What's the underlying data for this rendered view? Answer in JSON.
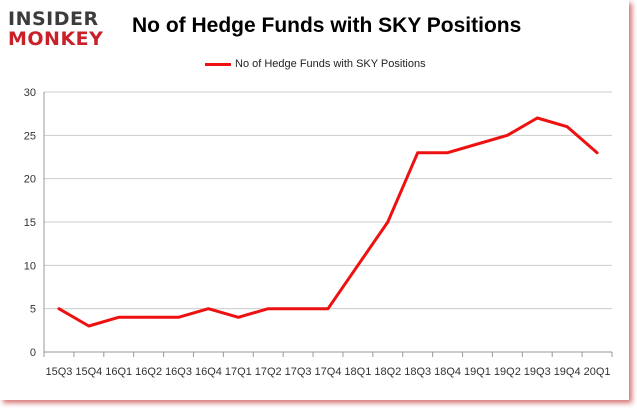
{
  "logo": {
    "line1": "INSIDER",
    "line2": "MONKEY"
  },
  "colors": {
    "series": "#ee1111",
    "grid": "#cccccc",
    "brand_red": "#c9202a"
  },
  "chart_data": {
    "type": "line",
    "title": "No of Hedge Funds with SKY Positions",
    "legend_position": "top-center",
    "grid": true,
    "ylim": [
      0,
      30
    ],
    "yticks": [
      0,
      5,
      10,
      15,
      20,
      25,
      30
    ],
    "categories": [
      "15Q3",
      "15Q4",
      "16Q1",
      "16Q2",
      "16Q3",
      "16Q4",
      "17Q1",
      "17Q2",
      "17Q3",
      "17Q4",
      "18Q1",
      "18Q2",
      "18Q3",
      "18Q4",
      "19Q1",
      "19Q2",
      "19Q3",
      "19Q4",
      "20Q1"
    ],
    "series": [
      {
        "name": "No of Hedge Funds with SKY Positions",
        "values": [
          5,
          3,
          4,
          4,
          4,
          5,
          4,
          5,
          5,
          5,
          10,
          15,
          23,
          23,
          24,
          25,
          27,
          26,
          23
        ]
      }
    ]
  }
}
